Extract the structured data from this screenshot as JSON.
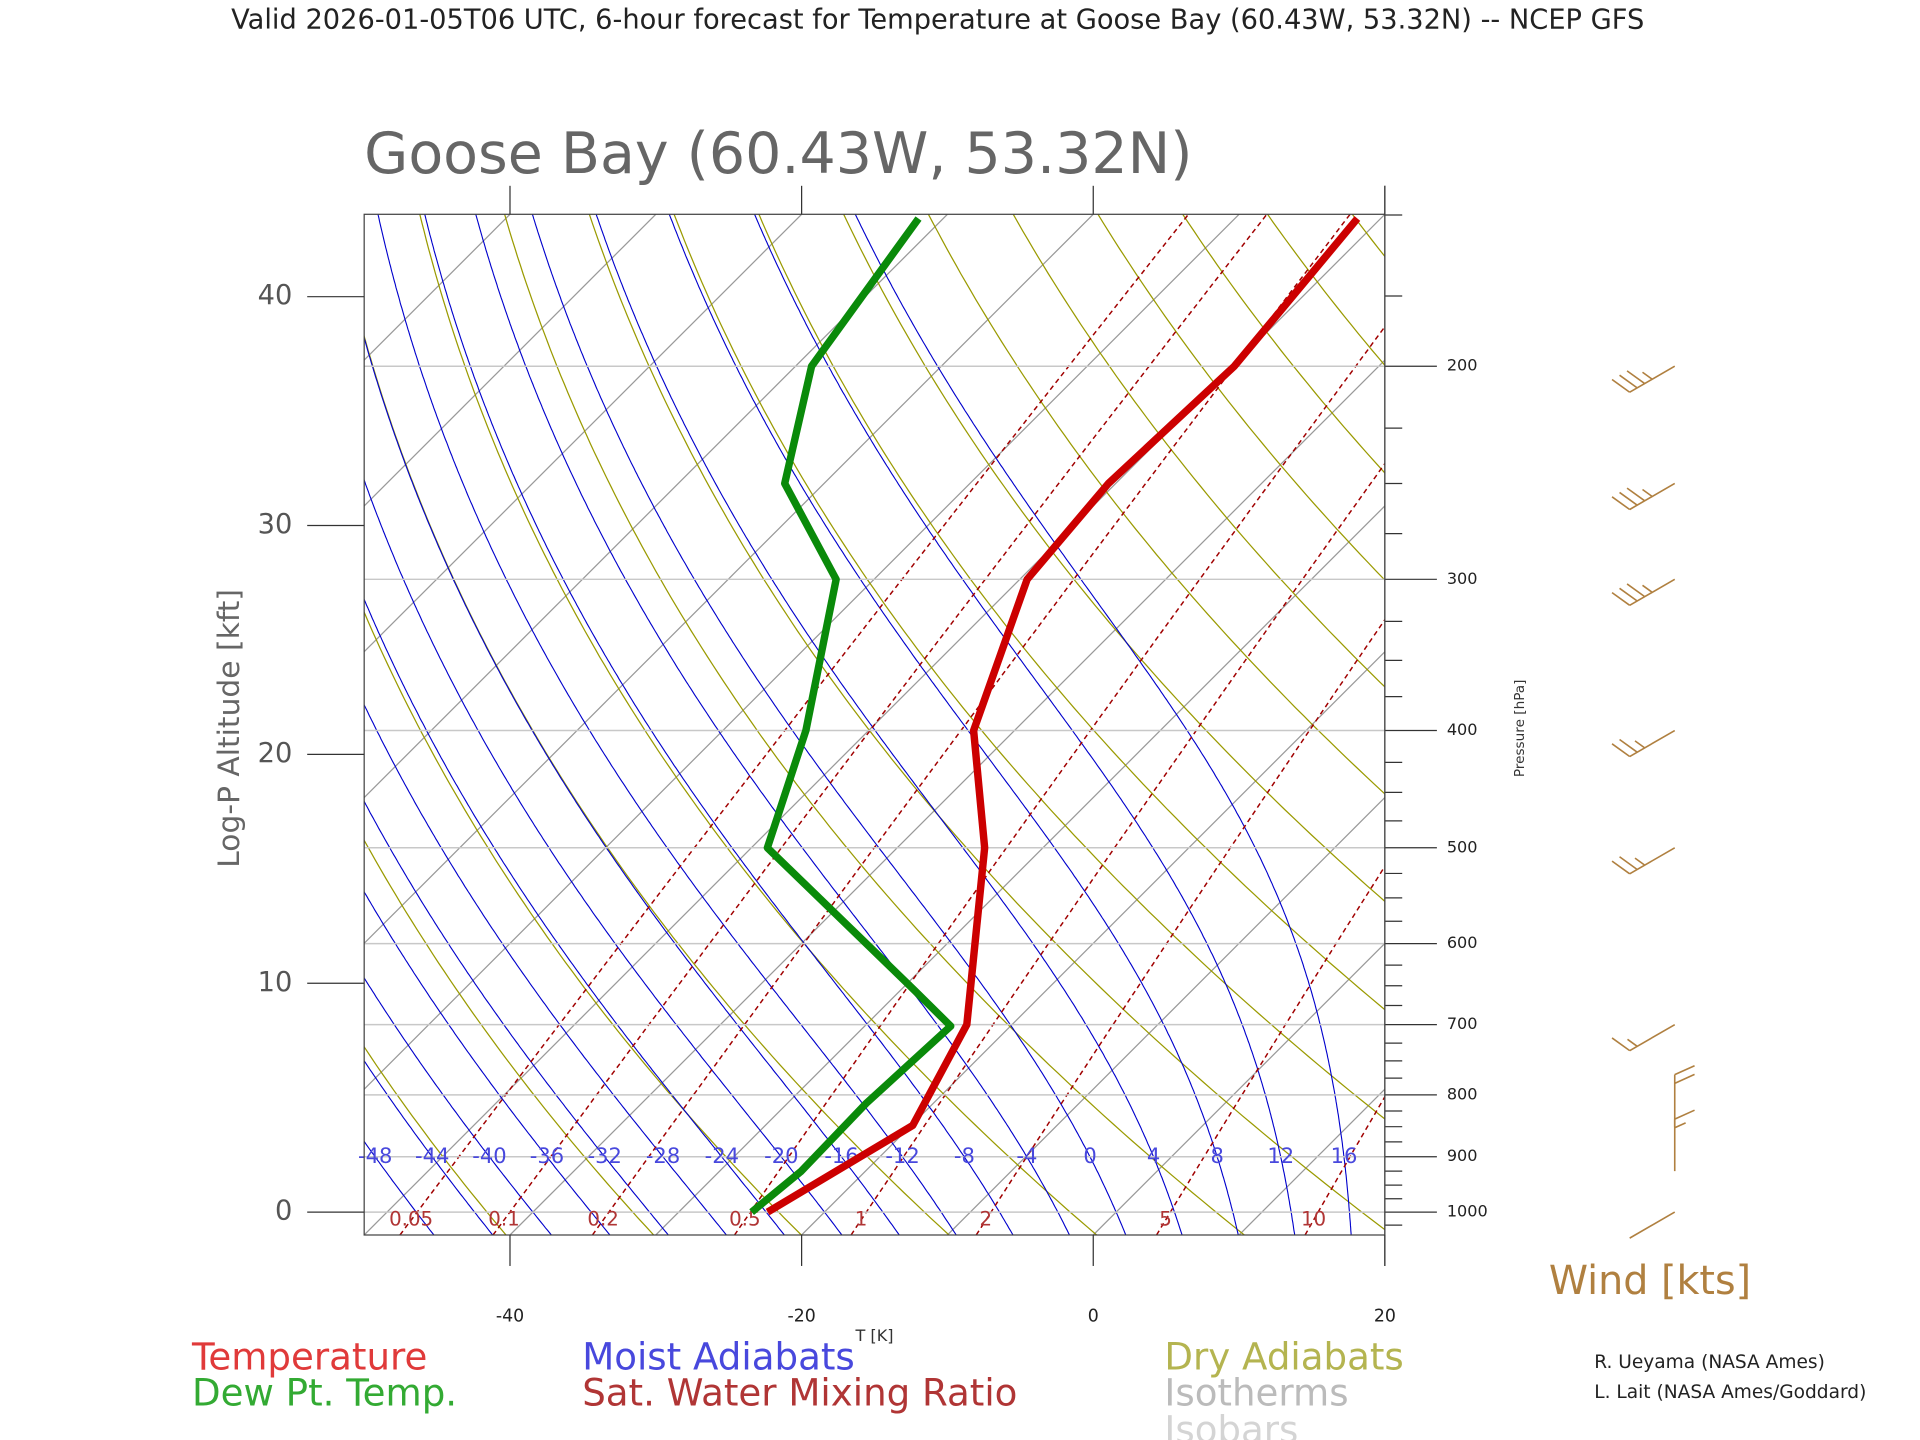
{
  "chart_data": {
    "type": "skewt",
    "header": "Valid 2026-01-05T06 UTC, 6-hour forecast for Temperature at Goose Bay (60.43W, 53.32N) -- NCEP GFS",
    "title": "Goose Bay (60.43W, 53.32N)",
    "y_label": "Log-P Altitude [kft]",
    "y2_label": "Pressure [hPa]",
    "x_label": "T [K]",
    "wind_label": "Wind [kts]",
    "credits": [
      "R. Ueyama (NASA Ames)",
      "L. Lait (NASA Ames/Goddard)"
    ],
    "xlim": [
      -50,
      20
    ],
    "xticks": [
      -40,
      -20,
      0,
      20
    ],
    "ylim": [
      -1,
      43.6
    ],
    "yticks": [
      0,
      10,
      20,
      30,
      40
    ],
    "pticks": [
      1000,
      900,
      800,
      700,
      600,
      500,
      400,
      300,
      200
    ],
    "pticks_minor": [
      1025,
      975,
      950,
      925,
      875,
      850,
      825,
      775,
      750,
      725,
      675,
      650,
      625,
      575,
      550,
      525,
      475,
      450,
      425,
      375,
      350,
      325,
      275,
      250,
      225,
      175,
      150
    ],
    "series": [
      {
        "name": "Temperature",
        "color": "#cc0000",
        "legend_color": "#e03a3a",
        "pressure": [
          1000,
          848,
          700,
          500,
          400,
          300,
          250,
          200,
          151
        ],
        "values": [
          -23.9,
          -19.9,
          -23.1,
          -34.0,
          -42.8,
          -49.5,
          -50.5,
          -49.9,
          -51.6
        ]
      },
      {
        "name": "Dew Pt. Temp.",
        "color": "#0a8a0a",
        "legend_color": "#33aa33",
        "pressure": [
          1000,
          925,
          813,
          702,
          657,
          500,
          400,
          300,
          250,
          200,
          151
        ],
        "values": [
          -25.0,
          -24.4,
          -24.6,
          -24.1,
          -28.9,
          -48.9,
          -54.3,
          -62.6,
          -72.7,
          -78.9,
          -81.7
        ]
      }
    ],
    "moist_adiabats": {
      "name": "Moist Adiabats",
      "color": "#0000cc",
      "legend_color": "#4848dd",
      "values": [
        -48,
        -44,
        -40,
        -36,
        -32,
        -28,
        -24,
        -20,
        -16,
        -12,
        -8,
        -4,
        0,
        4,
        8,
        12,
        16
      ]
    },
    "mixing_ratios": {
      "name": "Sat. Water Mixing Ratio",
      "color": "#a00000",
      "legend_color": "#b03535",
      "values": [
        0.05,
        0.1,
        0.2,
        0.5,
        1,
        2,
        5,
        10
      ]
    },
    "dry_adiabats": {
      "name": "Dry Adiabats",
      "color": "#9a9a00",
      "legend_color": "#b4b450",
      "values": [
        220,
        230,
        240,
        250,
        260,
        270,
        280,
        290,
        300,
        310,
        320,
        330,
        340,
        350,
        360,
        370,
        380,
        390,
        400
      ]
    },
    "isotherms": {
      "name": "Isotherms",
      "color": "#999999",
      "legend_color": "#bbbbbb",
      "values": [
        -120,
        -110,
        -100,
        -90,
        -80,
        -70,
        -60,
        -50,
        -40,
        -30,
        -20,
        -10,
        0,
        10,
        20
      ]
    },
    "isobars": {
      "name": "Isobars",
      "color": "#c8c8c8",
      "legend_color": "#d4d4d4"
    },
    "wind": {
      "color": "#b08040",
      "pressure": [
        1000,
        925,
        850,
        700,
        500,
        400,
        300,
        250,
        200
      ],
      "direction": [
        240,
        360,
        360,
        240,
        240,
        240,
        240,
        240,
        240
      ],
      "speed": [
        2,
        15,
        20,
        15,
        25,
        25,
        35,
        35,
        35
      ]
    }
  }
}
